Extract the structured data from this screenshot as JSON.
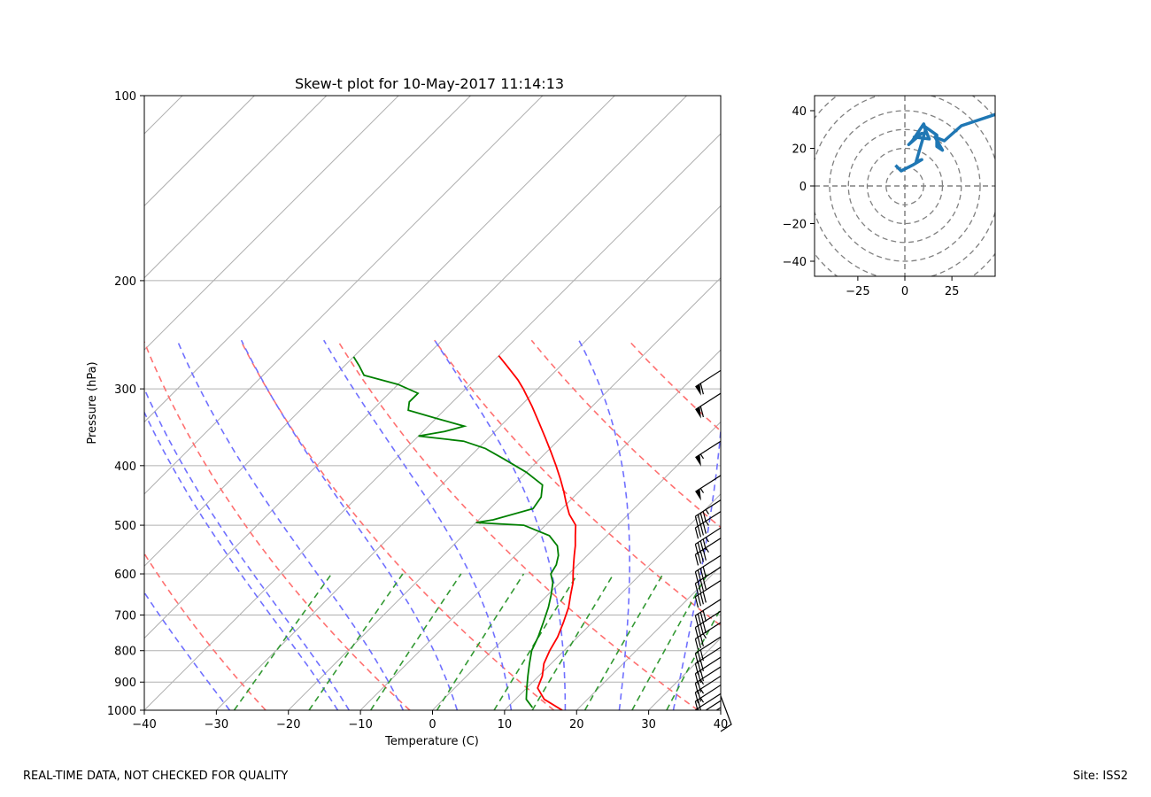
{
  "footer": {
    "disclaimer": "REAL-TIME DATA, NOT CHECKED FOR QUALITY",
    "site": "Site: ISS2"
  },
  "chart_data": [
    {
      "type": "line",
      "subtype": "skew-t log-p diagram",
      "title": "Skew-t plot for 10-May-2017 11:14:13",
      "xlabel": "Temperature (C)",
      "ylabel": "Pressure (hPa)",
      "xlim": [
        -40,
        40
      ],
      "ylim": [
        1000,
        100
      ],
      "x_ticks": [
        -40,
        -30,
        -20,
        -10,
        0,
        10,
        20,
        30,
        40
      ],
      "y_ticks": [
        100,
        200,
        300,
        400,
        500,
        600,
        700,
        800,
        900,
        1000
      ],
      "colors": {
        "temperature": "#ff0000",
        "dewpoint": "#008000",
        "dry_adiabats": "#ff7070",
        "moist_adiabats": "#7070ff",
        "mixing_ratio": "#339933",
        "isotherms": "#b0b0b0",
        "grid": "#b0b0b0",
        "barbs": "#000000"
      },
      "series": [
        {
          "name": "Temperature",
          "points": [
            [
              1000,
              18.0
            ],
            [
              960,
              14.0
            ],
            [
              920,
              11.5
            ],
            [
              880,
              10.5
            ],
            [
              840,
              9.0
            ],
            [
              800,
              8.0
            ],
            [
              760,
              7.2
            ],
            [
              720,
              6.0
            ],
            [
              680,
              4.6
            ],
            [
              650,
              3.2
            ],
            [
              620,
              1.8
            ],
            [
              600,
              0.6
            ],
            [
              580,
              -0.6
            ],
            [
              560,
              -1.8
            ],
            [
              540,
              -3.0
            ],
            [
              520,
              -4.4
            ],
            [
              500,
              -5.8
            ],
            [
              480,
              -8.2
            ],
            [
              460,
              -10.2
            ],
            [
              440,
              -12.2
            ],
            [
              420,
              -14.4
            ],
            [
              400,
              -16.8
            ],
            [
              380,
              -19.4
            ],
            [
              360,
              -22.2
            ],
            [
              340,
              -25.2
            ],
            [
              320,
              -28.4
            ],
            [
              300,
              -32.0
            ],
            [
              290,
              -34.0
            ],
            [
              275,
              -37.5
            ],
            [
              265,
              -40.0
            ]
          ]
        },
        {
          "name": "Dewpoint",
          "points": [
            [
              990,
              13.5
            ],
            [
              960,
              11.5
            ],
            [
              920,
              10.0
            ],
            [
              880,
              8.5
            ],
            [
              840,
              7.0
            ],
            [
              800,
              5.5
            ],
            [
              760,
              4.5
            ],
            [
              720,
              3.2
            ],
            [
              680,
              1.8
            ],
            [
              650,
              0.5
            ],
            [
              620,
              -1.0
            ],
            [
              600,
              -2.5
            ],
            [
              580,
              -3.0
            ],
            [
              560,
              -4.0
            ],
            [
              540,
              -5.5
            ],
            [
              520,
              -8.0
            ],
            [
              500,
              -13.0
            ],
            [
              495,
              -20.0
            ],
            [
              490,
              -18.0
            ],
            [
              470,
              -14.0
            ],
            [
              450,
              -14.5
            ],
            [
              430,
              -16.0
            ],
            [
              410,
              -20.0
            ],
            [
              390,
              -25.0
            ],
            [
              375,
              -29.0
            ],
            [
              365,
              -33.0
            ],
            [
              358,
              -40.0
            ],
            [
              352,
              -37.0
            ],
            [
              345,
              -35.0
            ],
            [
              335,
              -40.0
            ],
            [
              325,
              -45.0
            ],
            [
              315,
              -46.0
            ],
            [
              305,
              -46.0
            ],
            [
              295,
              -50.0
            ],
            [
              285,
              -56.0
            ],
            [
              275,
              -58.0
            ],
            [
              266,
              -60.0
            ]
          ]
        }
      ],
      "wind_barbs": [
        {
          "pressure": 280,
          "speed_kt": 60
        },
        {
          "pressure": 305,
          "speed_kt": 60
        },
        {
          "pressure": 365,
          "speed_kt": 55
        },
        {
          "pressure": 415,
          "speed_kt": 55
        },
        {
          "pressure": 455,
          "speed_kt": 45
        },
        {
          "pressure": 475,
          "speed_kt": 45
        },
        {
          "pressure": 505,
          "speed_kt": 45
        },
        {
          "pressure": 525,
          "speed_kt": 45
        },
        {
          "pressure": 560,
          "speed_kt": 40
        },
        {
          "pressure": 585,
          "speed_kt": 40
        },
        {
          "pressure": 615,
          "speed_kt": 40
        },
        {
          "pressure": 660,
          "speed_kt": 40
        },
        {
          "pressure": 690,
          "speed_kt": 40
        },
        {
          "pressure": 720,
          "speed_kt": 35
        },
        {
          "pressure": 760,
          "speed_kt": 30
        },
        {
          "pressure": 790,
          "speed_kt": 30
        },
        {
          "pressure": 820,
          "speed_kt": 30
        },
        {
          "pressure": 850,
          "speed_kt": 25
        },
        {
          "pressure": 880,
          "speed_kt": 25
        },
        {
          "pressure": 910,
          "speed_kt": 25
        },
        {
          "pressure": 940,
          "speed_kt": 20
        },
        {
          "pressure": 965,
          "speed_kt": 20
        },
        {
          "pressure": 990,
          "speed_kt": 15
        }
      ],
      "dry_adiabats_theta_k": [
        250,
        270,
        290,
        310,
        330,
        350,
        370
      ],
      "moist_adiabats_thetae_k": [
        240,
        255,
        270,
        285,
        300,
        315,
        330,
        345,
        360
      ],
      "mixing_ratio_g_per_kg": [
        0.4,
        1,
        2,
        4,
        7,
        10,
        16,
        24,
        32
      ]
    },
    {
      "type": "line",
      "subtype": "hodograph",
      "title": "",
      "xlim": [
        -48,
        48
      ],
      "ylim": [
        -48,
        48
      ],
      "x_ticks": [
        -25,
        0,
        25
      ],
      "y_ticks": [
        -40,
        -20,
        0,
        20,
        40
      ],
      "ring_spacing": 10,
      "color": "#1f77b4",
      "u": [
        -5,
        -2,
        4,
        9,
        6,
        11,
        10,
        4,
        2,
        9,
        5,
        13,
        10,
        17,
        17,
        20,
        16,
        21,
        30,
        48
      ],
      "v": [
        11,
        8,
        11,
        14,
        13,
        30,
        33,
        24,
        22,
        28,
        26,
        25,
        32,
        27,
        21,
        19,
        26,
        24,
        32,
        38
      ]
    }
  ]
}
